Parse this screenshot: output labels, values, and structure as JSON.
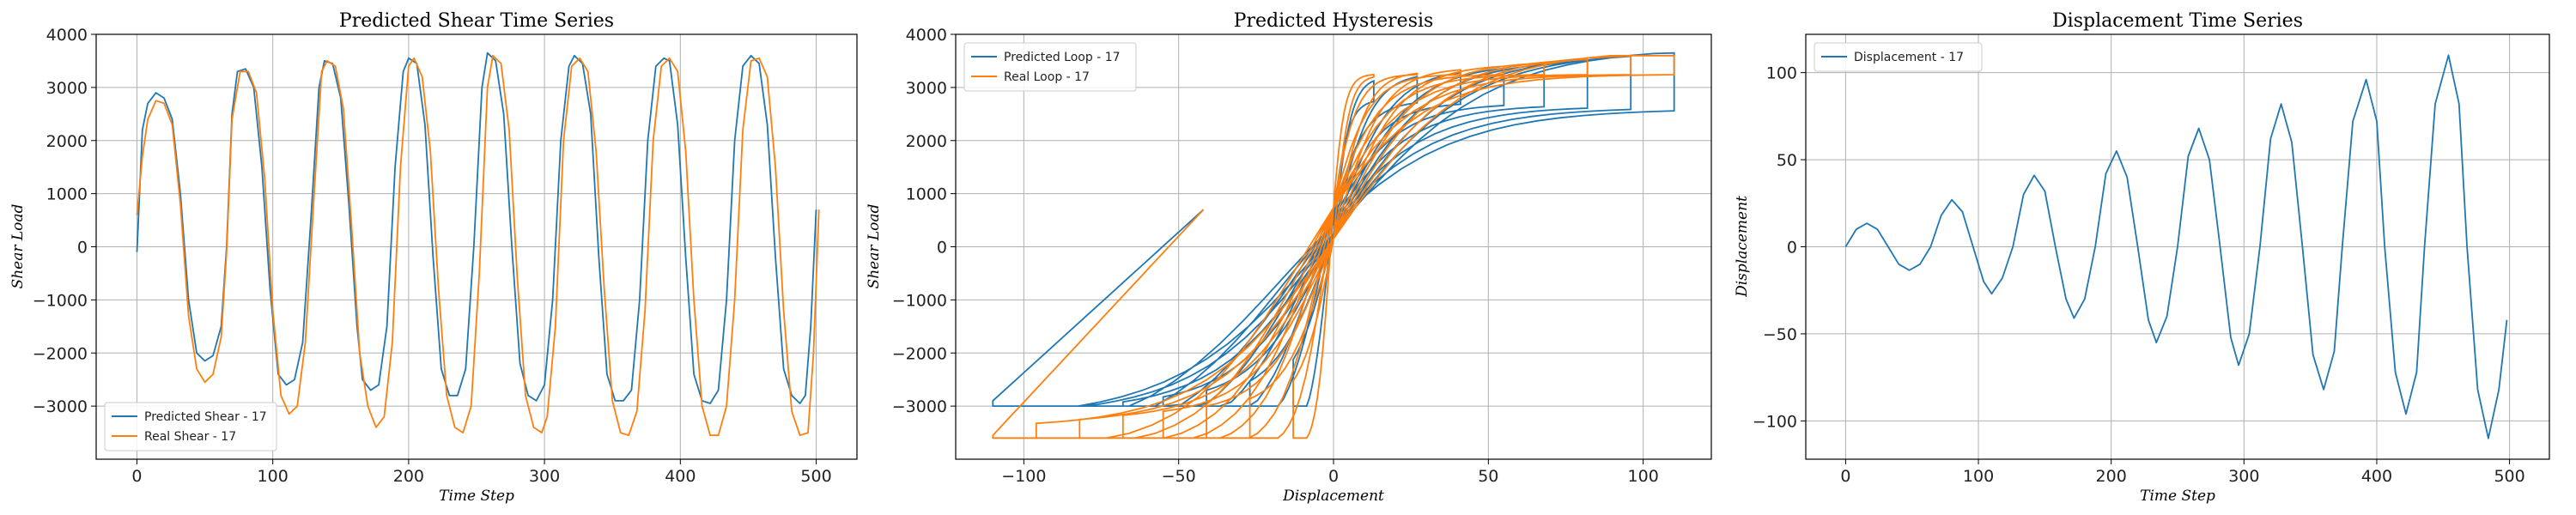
{
  "colors": {
    "predicted": "#1f77b4",
    "real": "#ff7f0e"
  },
  "chart_data": [
    {
      "type": "line",
      "title": "Predicted Shear Time Series",
      "xlabel": "Time Step",
      "ylabel": "Shear Load",
      "xlim": [
        -30,
        530
      ],
      "ylim": [
        -4000,
        4000
      ],
      "xticks": [
        0,
        100,
        200,
        300,
        400,
        500
      ],
      "yticks": [
        -3000,
        -2000,
        -1000,
        0,
        1000,
        2000,
        3000,
        4000
      ],
      "grid": true,
      "legend": "lower-left",
      "series": [
        {
          "name": "Predicted Shear - 17",
          "color": "#1f77b4",
          "points": [
            [
              0,
              -100
            ],
            [
              4,
              2200
            ],
            [
              8,
              2700
            ],
            [
              14,
              2900
            ],
            [
              20,
              2800
            ],
            [
              26,
              2400
            ],
            [
              32,
              1000
            ],
            [
              38,
              -1000
            ],
            [
              44,
              -2000
            ],
            [
              50,
              -2150
            ],
            [
              56,
              -2050
            ],
            [
              62,
              -1500
            ],
            [
              66,
              0
            ],
            [
              70,
              2500
            ],
            [
              74,
              3300
            ],
            [
              80,
              3350
            ],
            [
              86,
              3000
            ],
            [
              92,
              1500
            ],
            [
              98,
              -800
            ],
            [
              104,
              -2400
            ],
            [
              110,
              -2600
            ],
            [
              116,
              -2500
            ],
            [
              122,
              -1800
            ],
            [
              128,
              500
            ],
            [
              134,
              3000
            ],
            [
              138,
              3500
            ],
            [
              144,
              3450
            ],
            [
              150,
              2800
            ],
            [
              156,
              800
            ],
            [
              162,
              -1500
            ],
            [
              166,
              -2500
            ],
            [
              172,
              -2700
            ],
            [
              178,
              -2600
            ],
            [
              184,
              -1500
            ],
            [
              190,
              1500
            ],
            [
              196,
              3300
            ],
            [
              200,
              3550
            ],
            [
              206,
              3450
            ],
            [
              212,
              2300
            ],
            [
              218,
              -200
            ],
            [
              224,
              -2300
            ],
            [
              230,
              -2800
            ],
            [
              236,
              -2800
            ],
            [
              242,
              -2300
            ],
            [
              248,
              0
            ],
            [
              254,
              3000
            ],
            [
              258,
              3650
            ],
            [
              264,
              3500
            ],
            [
              270,
              2500
            ],
            [
              276,
              0
            ],
            [
              282,
              -2200
            ],
            [
              288,
              -2800
            ],
            [
              294,
              -2900
            ],
            [
              300,
              -2600
            ],
            [
              306,
              -1000
            ],
            [
              312,
              2000
            ],
            [
              318,
              3400
            ],
            [
              322,
              3600
            ],
            [
              328,
              3450
            ],
            [
              334,
              2500
            ],
            [
              340,
              -200
            ],
            [
              346,
              -2400
            ],
            [
              352,
              -2900
            ],
            [
              358,
              -2900
            ],
            [
              364,
              -2700
            ],
            [
              370,
              -1000
            ],
            [
              376,
              2000
            ],
            [
              382,
              3400
            ],
            [
              388,
              3550
            ],
            [
              392,
              3500
            ],
            [
              398,
              2300
            ],
            [
              404,
              -200
            ],
            [
              410,
              -2400
            ],
            [
              416,
              -2900
            ],
            [
              422,
              -2950
            ],
            [
              428,
              -2700
            ],
            [
              434,
              -1000
            ],
            [
              440,
              2000
            ],
            [
              446,
              3400
            ],
            [
              452,
              3600
            ],
            [
              458,
              3450
            ],
            [
              464,
              2300
            ],
            [
              470,
              -200
            ],
            [
              476,
              -2300
            ],
            [
              482,
              -2800
            ],
            [
              488,
              -2950
            ],
            [
              492,
              -2800
            ],
            [
              496,
              -1500
            ],
            [
              500,
              700
            ]
          ]
        },
        {
          "name": "Real Shear - 17",
          "color": "#ff7f0e",
          "points": [
            [
              0,
              600
            ],
            [
              4,
              1700
            ],
            [
              8,
              2400
            ],
            [
              14,
              2750
            ],
            [
              20,
              2700
            ],
            [
              26,
              2300
            ],
            [
              32,
              800
            ],
            [
              38,
              -1300
            ],
            [
              44,
              -2300
            ],
            [
              50,
              -2550
            ],
            [
              56,
              -2400
            ],
            [
              62,
              -1700
            ],
            [
              66,
              -100
            ],
            [
              70,
              2400
            ],
            [
              76,
              3300
            ],
            [
              82,
              3300
            ],
            [
              88,
              2900
            ],
            [
              94,
              1300
            ],
            [
              100,
              -1200
            ],
            [
              106,
              -2800
            ],
            [
              112,
              -3150
            ],
            [
              118,
              -3000
            ],
            [
              124,
              -1800
            ],
            [
              130,
              800
            ],
            [
              136,
              3300
            ],
            [
              140,
              3500
            ],
            [
              146,
              3400
            ],
            [
              152,
              2600
            ],
            [
              158,
              400
            ],
            [
              164,
              -2000
            ],
            [
              170,
              -3000
            ],
            [
              176,
              -3400
            ],
            [
              182,
              -3200
            ],
            [
              188,
              -1800
            ],
            [
              194,
              1500
            ],
            [
              200,
              3400
            ],
            [
              204,
              3550
            ],
            [
              210,
              3200
            ],
            [
              216,
              1800
            ],
            [
              222,
              -800
            ],
            [
              228,
              -2800
            ],
            [
              234,
              -3400
            ],
            [
              240,
              -3500
            ],
            [
              246,
              -3000
            ],
            [
              252,
              -500
            ],
            [
              258,
              3000
            ],
            [
              262,
              3600
            ],
            [
              268,
              3450
            ],
            [
              274,
              2200
            ],
            [
              280,
              -600
            ],
            [
              286,
              -2800
            ],
            [
              292,
              -3400
            ],
            [
              298,
              -3500
            ],
            [
              302,
              -3200
            ],
            [
              308,
              -1500
            ],
            [
              314,
              2000
            ],
            [
              320,
              3400
            ],
            [
              326,
              3550
            ],
            [
              332,
              3300
            ],
            [
              338,
              1800
            ],
            [
              344,
              -800
            ],
            [
              350,
              -2900
            ],
            [
              356,
              -3500
            ],
            [
              362,
              -3550
            ],
            [
              368,
              -3100
            ],
            [
              374,
              -1200
            ],
            [
              380,
              2000
            ],
            [
              386,
              3400
            ],
            [
              392,
              3550
            ],
            [
              398,
              3300
            ],
            [
              404,
              1800
            ],
            [
              410,
              -1000
            ],
            [
              416,
              -3000
            ],
            [
              422,
              -3550
            ],
            [
              428,
              -3550
            ],
            [
              434,
              -3000
            ],
            [
              440,
              -1000
            ],
            [
              446,
              2200
            ],
            [
              452,
              3500
            ],
            [
              458,
              3550
            ],
            [
              464,
              3200
            ],
            [
              470,
              1500
            ],
            [
              476,
              -1200
            ],
            [
              482,
              -3100
            ],
            [
              488,
              -3550
            ],
            [
              494,
              -3500
            ],
            [
              498,
              -2000
            ],
            [
              502,
              700
            ]
          ]
        }
      ]
    },
    {
      "type": "line",
      "title": "Predicted Hysteresis",
      "xlabel": "Displacement",
      "ylabel": "Shear Load",
      "xlim": [
        -122,
        122
      ],
      "ylim": [
        -4000,
        4000
      ],
      "xticks": [
        -100,
        -50,
        0,
        50,
        100
      ],
      "yticks": [
        -3000,
        -2000,
        -1000,
        0,
        1000,
        2000,
        3000,
        4000
      ],
      "grid": true,
      "legend": "upper-left",
      "amplitudes": [
        13,
        27,
        41,
        55,
        68,
        82,
        96,
        110
      ],
      "series": [
        {
          "name": "Predicted Loop - 17",
          "color": "#1f77b4"
        },
        {
          "name": "Real Loop - 17",
          "color": "#ff7f0e"
        }
      ]
    },
    {
      "type": "line",
      "title": "Displacement Time Series",
      "xlabel": "Time Step",
      "ylabel": "Displacement",
      "xlim": [
        -30,
        530
      ],
      "ylim": [
        -122,
        122
      ],
      "xticks": [
        0,
        100,
        200,
        300,
        400,
        500
      ],
      "yticks": [
        -100,
        -50,
        0,
        50,
        100
      ],
      "grid": true,
      "legend": "upper-left",
      "series": [
        {
          "name": "Displacement - 17",
          "color": "#1f77b4",
          "points": [
            [
              0,
              0
            ],
            [
              8,
              10
            ],
            [
              16,
              13.5
            ],
            [
              24,
              10
            ],
            [
              32,
              0
            ],
            [
              40,
              -10
            ],
            [
              48,
              -13.5
            ],
            [
              56,
              -10
            ],
            [
              64,
              0
            ],
            [
              72,
              18
            ],
            [
              80,
              27
            ],
            [
              88,
              20
            ],
            [
              96,
              0
            ],
            [
              104,
              -20
            ],
            [
              110,
              -27
            ],
            [
              118,
              -18
            ],
            [
              126,
              0
            ],
            [
              134,
              30
            ],
            [
              142,
              41
            ],
            [
              150,
              32
            ],
            [
              158,
              0
            ],
            [
              166,
              -30
            ],
            [
              172,
              -41
            ],
            [
              180,
              -30
            ],
            [
              188,
              0
            ],
            [
              196,
              42
            ],
            [
              204,
              55
            ],
            [
              212,
              40
            ],
            [
              220,
              0
            ],
            [
              228,
              -42
            ],
            [
              234,
              -55
            ],
            [
              242,
              -40
            ],
            [
              250,
              0
            ],
            [
              258,
              52
            ],
            [
              266,
              68
            ],
            [
              274,
              50
            ],
            [
              282,
              0
            ],
            [
              290,
              -52
            ],
            [
              296,
              -68
            ],
            [
              304,
              -50
            ],
            [
              312,
              0
            ],
            [
              320,
              62
            ],
            [
              328,
              82
            ],
            [
              336,
              60
            ],
            [
              344,
              0
            ],
            [
              352,
              -62
            ],
            [
              360,
              -82
            ],
            [
              368,
              -60
            ],
            [
              374,
              0
            ],
            [
              382,
              72
            ],
            [
              392,
              96
            ],
            [
              400,
              72
            ],
            [
              406,
              0
            ],
            [
              414,
              -72
            ],
            [
              422,
              -96
            ],
            [
              430,
              -72
            ],
            [
              436,
              0
            ],
            [
              444,
              82
            ],
            [
              454,
              110
            ],
            [
              462,
              82
            ],
            [
              468,
              0
            ],
            [
              476,
              -82
            ],
            [
              484,
              -110
            ],
            [
              492,
              -82
            ],
            [
              498,
              -42
            ]
          ]
        }
      ]
    }
  ]
}
